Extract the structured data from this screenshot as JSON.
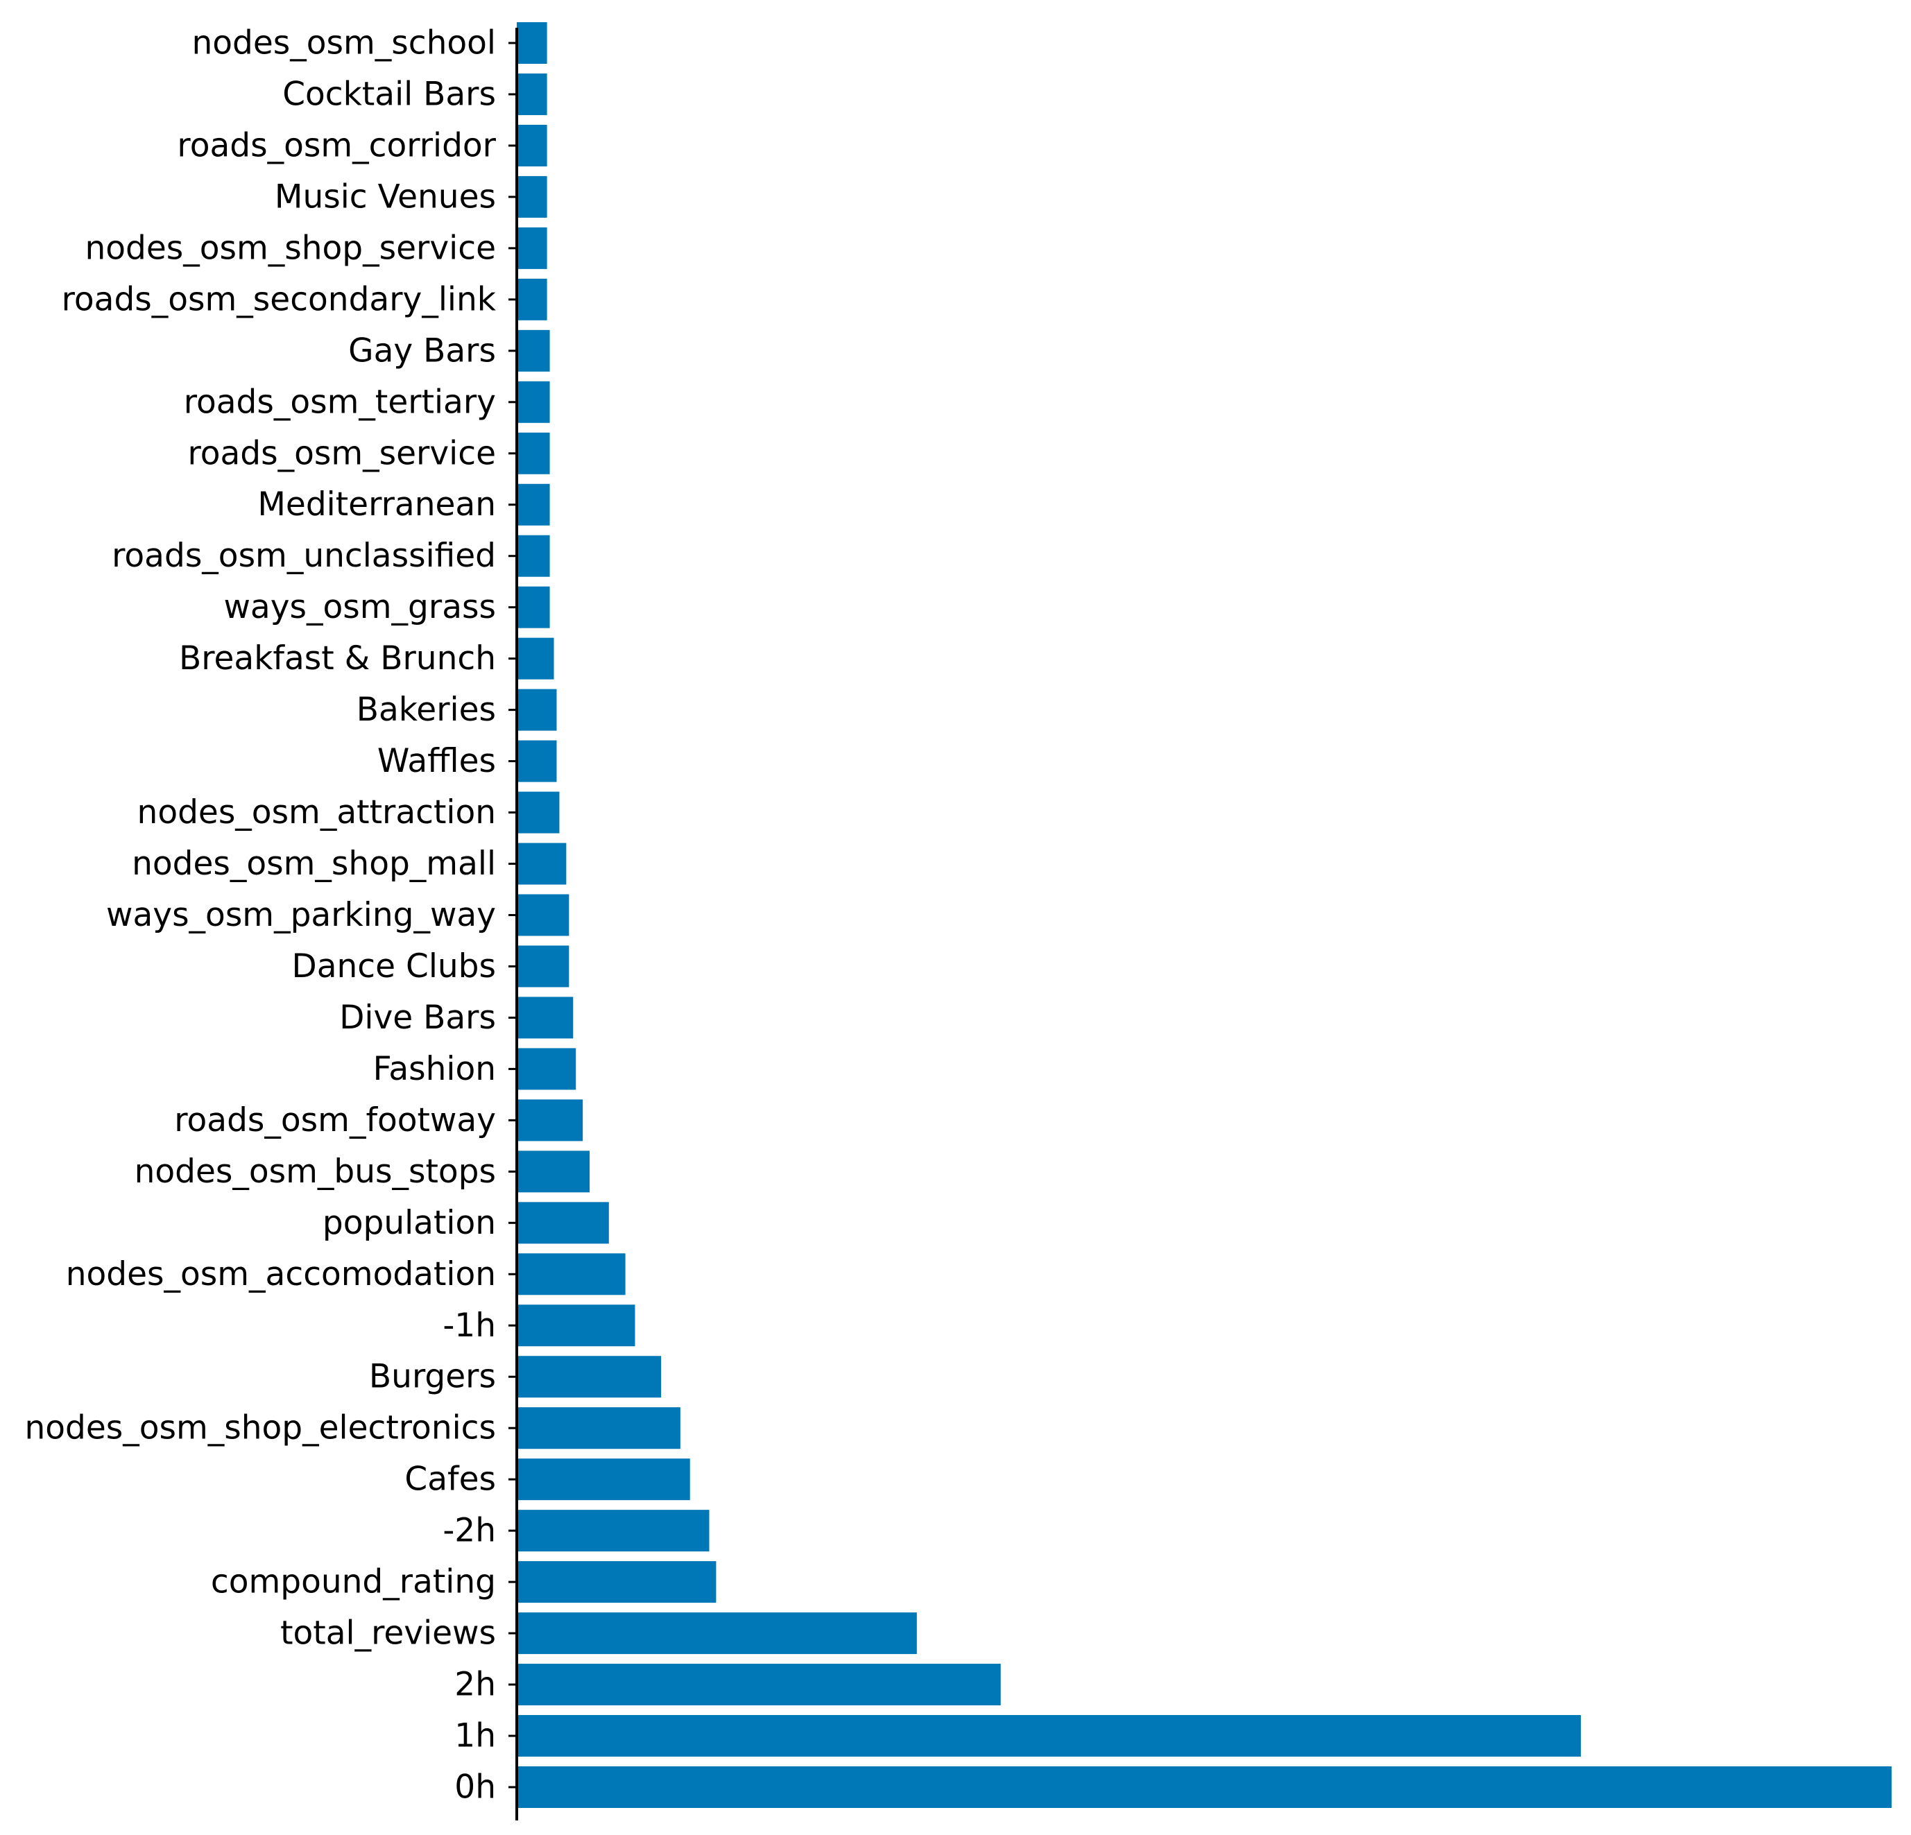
{
  "chart_data": {
    "type": "bar",
    "orientation": "horizontal",
    "categories": [
      "nodes_osm_school",
      "Cocktail Bars",
      "roads_osm_corridor",
      "Music Venues",
      "nodes_osm_shop_service",
      "roads_osm_secondary_link",
      "Gay Bars",
      "roads_osm_tertiary",
      "roads_osm_service",
      "Mediterranean",
      "roads_osm_unclassified",
      "ways_osm_grass",
      "Breakfast & Brunch",
      "Bakeries",
      "Waffles",
      "nodes_osm_attraction",
      "nodes_osm_shop_mall",
      "ways_osm_parking_way",
      "Dance Clubs",
      "Dive Bars",
      "Fashion",
      "roads_osm_footway",
      "nodes_osm_bus_stops",
      "population",
      "nodes_osm_accomodation",
      "-1h",
      "Burgers",
      "nodes_osm_shop_electronics",
      "Cafes",
      "-2h",
      "compound_rating",
      "total_reviews",
      "2h",
      "1h",
      "0h"
    ],
    "values": [
      0.022,
      0.022,
      0.022,
      0.022,
      0.022,
      0.022,
      0.024,
      0.024,
      0.024,
      0.024,
      0.024,
      0.024,
      0.027,
      0.029,
      0.029,
      0.031,
      0.036,
      0.038,
      0.038,
      0.041,
      0.043,
      0.048,
      0.053,
      0.067,
      0.079,
      0.086,
      0.105,
      0.119,
      0.126,
      0.14,
      0.145,
      0.291,
      0.352,
      0.774,
      1.0
    ],
    "color": "#0077b6",
    "title": "",
    "xlabel": "",
    "ylabel": "",
    "xlim": [
      0,
      1.0
    ],
    "x_axis_visible": false,
    "grid": false,
    "legend": "none"
  }
}
